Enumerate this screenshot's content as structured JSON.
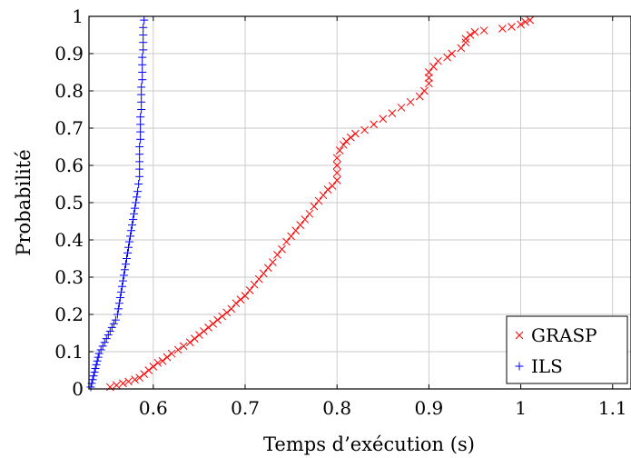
{
  "chart_data": {
    "type": "scatter",
    "title": "",
    "xlabel": "Temps d’exécution (s)",
    "ylabel": "Probabilité",
    "xlim": [
      0.53,
      1.12
    ],
    "ylim": [
      0,
      1
    ],
    "x_ticks": [
      "0.6",
      "0.7",
      "0.8",
      "0.9",
      "1",
      "1.1"
    ],
    "x_tick_values": [
      0.6,
      0.7,
      0.8,
      0.9,
      1.0,
      1.1
    ],
    "y_ticks": [
      "0",
      "0.1",
      "0.2",
      "0.3",
      "0.4",
      "0.5",
      "0.6",
      "0.7",
      "0.8",
      "0.9",
      "1"
    ],
    "y_tick_values": [
      0,
      0.1,
      0.2,
      0.3,
      0.4,
      0.5,
      0.6,
      0.7,
      0.8,
      0.9,
      1.0
    ],
    "grid": true,
    "legend_position": "bottom-right",
    "series": [
      {
        "name": "GRASP",
        "marker": "x",
        "color": "#ff0000",
        "points": [
          [
            0.553,
            0.005
          ],
          [
            0.56,
            0.01
          ],
          [
            0.567,
            0.015
          ],
          [
            0.573,
            0.02
          ],
          [
            0.58,
            0.025
          ],
          [
            0.585,
            0.03
          ],
          [
            0.59,
            0.04
          ],
          [
            0.595,
            0.05
          ],
          [
            0.6,
            0.06
          ],
          [
            0.605,
            0.07
          ],
          [
            0.61,
            0.075
          ],
          [
            0.615,
            0.085
          ],
          [
            0.62,
            0.095
          ],
          [
            0.627,
            0.105
          ],
          [
            0.633,
            0.115
          ],
          [
            0.64,
            0.125
          ],
          [
            0.645,
            0.135
          ],
          [
            0.65,
            0.145
          ],
          [
            0.655,
            0.155
          ],
          [
            0.66,
            0.165
          ],
          [
            0.665,
            0.175
          ],
          [
            0.67,
            0.185
          ],
          [
            0.675,
            0.195
          ],
          [
            0.68,
            0.205
          ],
          [
            0.685,
            0.215
          ],
          [
            0.69,
            0.23
          ],
          [
            0.695,
            0.24
          ],
          [
            0.7,
            0.25
          ],
          [
            0.705,
            0.265
          ],
          [
            0.71,
            0.28
          ],
          [
            0.715,
            0.295
          ],
          [
            0.72,
            0.31
          ],
          [
            0.725,
            0.325
          ],
          [
            0.73,
            0.34
          ],
          [
            0.735,
            0.36
          ],
          [
            0.74,
            0.375
          ],
          [
            0.745,
            0.395
          ],
          [
            0.75,
            0.41
          ],
          [
            0.755,
            0.425
          ],
          [
            0.76,
            0.44
          ],
          [
            0.765,
            0.455
          ],
          [
            0.77,
            0.47
          ],
          [
            0.775,
            0.49
          ],
          [
            0.78,
            0.505
          ],
          [
            0.785,
            0.52
          ],
          [
            0.79,
            0.535
          ],
          [
            0.795,
            0.545
          ],
          [
            0.8,
            0.56
          ],
          [
            0.8,
            0.58
          ],
          [
            0.8,
            0.6
          ],
          [
            0.8,
            0.62
          ],
          [
            0.803,
            0.64
          ],
          [
            0.807,
            0.655
          ],
          [
            0.81,
            0.665
          ],
          [
            0.815,
            0.675
          ],
          [
            0.82,
            0.685
          ],
          [
            0.83,
            0.695
          ],
          [
            0.84,
            0.71
          ],
          [
            0.85,
            0.725
          ],
          [
            0.86,
            0.74
          ],
          [
            0.87,
            0.755
          ],
          [
            0.88,
            0.77
          ],
          [
            0.89,
            0.785
          ],
          [
            0.895,
            0.8
          ],
          [
            0.9,
            0.82
          ],
          [
            0.9,
            0.835
          ],
          [
            0.9,
            0.85
          ],
          [
            0.905,
            0.865
          ],
          [
            0.91,
            0.88
          ],
          [
            0.92,
            0.89
          ],
          [
            0.925,
            0.9
          ],
          [
            0.935,
            0.915
          ],
          [
            0.94,
            0.93
          ],
          [
            0.94,
            0.94
          ],
          [
            0.945,
            0.95
          ],
          [
            0.95,
            0.958
          ],
          [
            0.96,
            0.962
          ],
          [
            0.98,
            0.967
          ],
          [
            0.99,
            0.972
          ],
          [
            1.0,
            0.978
          ],
          [
            1.005,
            0.985
          ],
          [
            1.01,
            0.99
          ]
        ]
      },
      {
        "name": "ILS",
        "marker": "+",
        "color": "#0000ff",
        "points": [
          [
            0.532,
            0.005
          ],
          [
            0.533,
            0.015
          ],
          [
            0.534,
            0.025
          ],
          [
            0.535,
            0.035
          ],
          [
            0.536,
            0.045
          ],
          [
            0.537,
            0.055
          ],
          [
            0.538,
            0.065
          ],
          [
            0.539,
            0.075
          ],
          [
            0.54,
            0.085
          ],
          [
            0.541,
            0.095
          ],
          [
            0.543,
            0.105
          ],
          [
            0.545,
            0.115
          ],
          [
            0.547,
            0.125
          ],
          [
            0.549,
            0.135
          ],
          [
            0.551,
            0.145
          ],
          [
            0.553,
            0.155
          ],
          [
            0.555,
            0.165
          ],
          [
            0.557,
            0.175
          ],
          [
            0.559,
            0.185
          ],
          [
            0.561,
            0.2
          ],
          [
            0.562,
            0.215
          ],
          [
            0.563,
            0.23
          ],
          [
            0.564,
            0.245
          ],
          [
            0.565,
            0.26
          ],
          [
            0.566,
            0.275
          ],
          [
            0.567,
            0.29
          ],
          [
            0.568,
            0.305
          ],
          [
            0.569,
            0.32
          ],
          [
            0.57,
            0.335
          ],
          [
            0.571,
            0.35
          ],
          [
            0.572,
            0.365
          ],
          [
            0.573,
            0.38
          ],
          [
            0.574,
            0.395
          ],
          [
            0.575,
            0.41
          ],
          [
            0.576,
            0.425
          ],
          [
            0.577,
            0.44
          ],
          [
            0.578,
            0.455
          ],
          [
            0.579,
            0.47
          ],
          [
            0.58,
            0.485
          ],
          [
            0.581,
            0.5
          ],
          [
            0.582,
            0.515
          ],
          [
            0.583,
            0.53
          ],
          [
            0.584,
            0.55
          ],
          [
            0.585,
            0.57
          ],
          [
            0.585,
            0.59
          ],
          [
            0.585,
            0.61
          ],
          [
            0.585,
            0.63
          ],
          [
            0.585,
            0.65
          ],
          [
            0.586,
            0.67
          ],
          [
            0.586,
            0.69
          ],
          [
            0.586,
            0.71
          ],
          [
            0.586,
            0.73
          ],
          [
            0.587,
            0.75
          ],
          [
            0.587,
            0.77
          ],
          [
            0.587,
            0.79
          ],
          [
            0.587,
            0.81
          ],
          [
            0.588,
            0.83
          ],
          [
            0.588,
            0.85
          ],
          [
            0.588,
            0.87
          ],
          [
            0.588,
            0.89
          ],
          [
            0.589,
            0.91
          ],
          [
            0.589,
            0.93
          ],
          [
            0.589,
            0.95
          ],
          [
            0.589,
            0.97
          ],
          [
            0.59,
            0.99
          ]
        ]
      }
    ]
  }
}
